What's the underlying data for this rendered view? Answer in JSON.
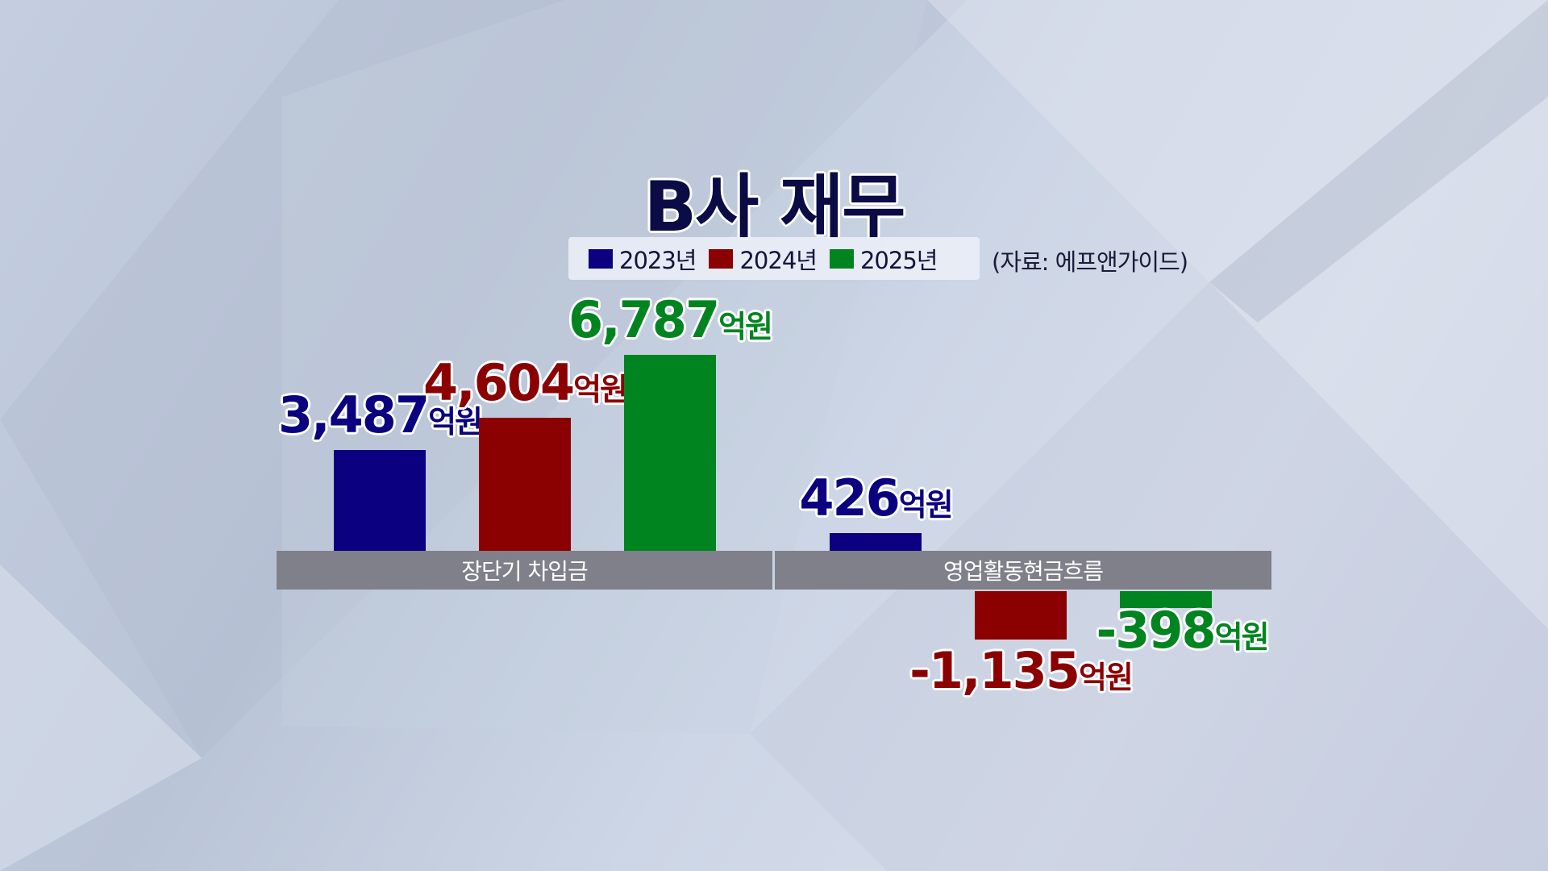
{
  "chart_data": {
    "type": "bar",
    "title": "B사 재무",
    "source": "(자료: 에프앤가이드)",
    "unit": "억원",
    "legend_position": "top",
    "grid": false,
    "categories": [
      "장단기 차입금",
      "영업활동현금흐름"
    ],
    "series": [
      {
        "name": "2023년",
        "color": "#0a0080",
        "values": [
          3487,
          426
        ],
        "labels": [
          "3,487",
          "426"
        ]
      },
      {
        "name": "2024년",
        "color": "#8b0000",
        "values": [
          4604,
          -1135
        ],
        "labels": [
          "4,604",
          "-1,135"
        ]
      },
      {
        "name": "2025년",
        "color": "#008420",
        "values": [
          6787,
          -398
        ],
        "labels": [
          "6,787",
          "-398"
        ]
      }
    ]
  }
}
